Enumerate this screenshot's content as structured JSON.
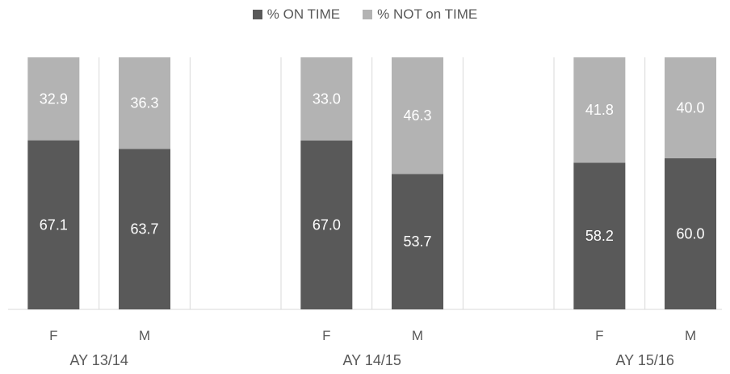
{
  "chart_data": {
    "type": "bar",
    "stacked": true,
    "groups": [
      "AY 13/14",
      "AY 14/15",
      "AY 15/16"
    ],
    "categories": [
      "F",
      "M",
      "F",
      "M",
      "F",
      "M"
    ],
    "group_index": [
      0,
      0,
      1,
      1,
      2,
      2
    ],
    "series": [
      {
        "name": "% ON TIME",
        "values": [
          67.1,
          63.7,
          67.0,
          53.7,
          58.2,
          60.0
        ],
        "color": "#595959"
      },
      {
        "name": "% NOT on TIME",
        "values": [
          32.9,
          36.3,
          33.0,
          46.3,
          41.8,
          40.0
        ],
        "color": "#b3b3b3"
      }
    ],
    "data_labels": {
      "on_time": [
        "67.1",
        "63.7",
        "67.0",
        "53.7",
        "58.2",
        "60.0"
      ],
      "not_on_time": [
        "32.9",
        "36.3",
        "33.0",
        "46.3",
        "41.8",
        "40.0"
      ]
    },
    "ylim": [
      0,
      100
    ],
    "legend_position": "top-center",
    "grid": false,
    "category_separators": true
  }
}
